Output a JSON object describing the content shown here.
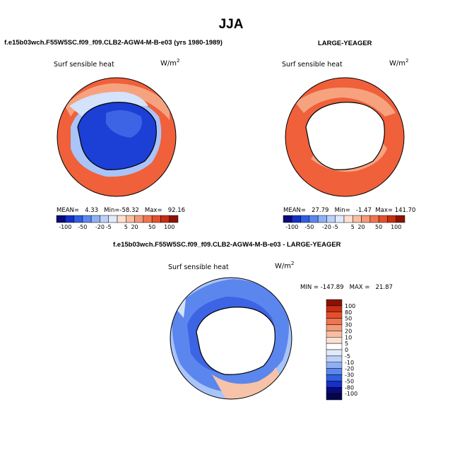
{
  "page": {
    "title": "JJA",
    "left_case": "f.e15b03wch.F55W5SC.f09_f09.CLB2-AGW4-M-B-e03 (yrs 1980-1989)",
    "right_case": "LARGE-YEAGER",
    "diff_case": "f.e15b03wch.F55W5SC.f09_f09.CLB2-AGW4-M-B-e03 - LARGE-YEAGER"
  },
  "colors": {
    "ocean_neg_strong": "#1c3fd6",
    "ocean_neg": "#5b86ee",
    "ocean_neg_light": "#a9c4f8",
    "ocean_pos": "#f0603a",
    "ocean_pos_light": "#f6a27f",
    "land_white": "#ffffff",
    "coast": "#000000"
  },
  "chart_data": [
    {
      "type": "heatmap",
      "projection": "south-polar-stereographic",
      "label": "Surf sensible heat",
      "units": "W/m",
      "units_exp": "2",
      "stats": {
        "mean_label": "MEAN=",
        "mean": "4.33",
        "min_label": "Min=",
        "min": "-58.32",
        "max_label": "Max=",
        "max": "92.16"
      },
      "colorbar": {
        "orientation": "horizontal",
        "levels": [
          "-100",
          "-50",
          "-20",
          "-5",
          "5",
          "20",
          "50",
          "100"
        ]
      }
    },
    {
      "type": "heatmap",
      "projection": "south-polar-stereographic",
      "label": "Surf sensible heat",
      "units": "W/m",
      "units_exp": "2",
      "stats": {
        "mean_label": "MEAN=",
        "mean": "27.79",
        "min_label": "Min=",
        "min": "-1.47",
        "max_label": "Max=",
        "max": "141.70"
      },
      "colorbar": {
        "orientation": "horizontal",
        "levels": [
          "-100",
          "-50",
          "-20",
          "-5",
          "5",
          "20",
          "50",
          "100"
        ]
      }
    },
    {
      "type": "heatmap",
      "projection": "south-polar-stereographic",
      "label": "Surf sensible heat",
      "units": "W/m",
      "units_exp": "2",
      "stats": {
        "min_label": "MIN =",
        "min": "-147.89",
        "max_label": "MAX =",
        "max": "21.87"
      },
      "colorbar": {
        "orientation": "vertical",
        "levels": [
          "100",
          "80",
          "50",
          "30",
          "20",
          "10",
          "5",
          "0",
          "-5",
          "-10",
          "-20",
          "-30",
          "-50",
          "-80",
          "-100"
        ]
      }
    }
  ]
}
